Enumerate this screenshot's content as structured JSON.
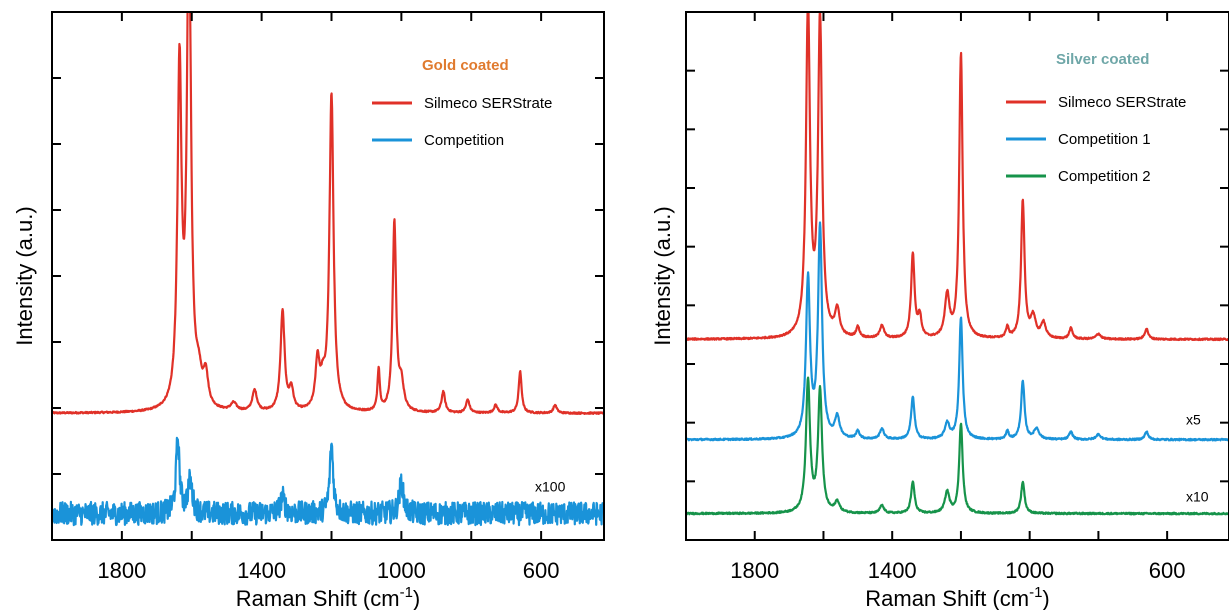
{
  "chart_data": [
    {
      "type": "line",
      "panel": "left",
      "legend_title": "Gold coated",
      "legend_title_color": "#e07a2e",
      "legend_position": "top-right",
      "xlabel": "Raman Shift (cm",
      "xlabel_sup": "-1",
      "xlabel_close": ")",
      "ylabel": "Intensity (a.u.)",
      "xlim": [
        2000,
        420
      ],
      "x_reversed": true,
      "x_ticks": [
        1800,
        1400,
        1000,
        600
      ],
      "x_tick_labels": [
        "1800",
        "1400",
        "1000",
        "600"
      ],
      "ylim": [
        0,
        100
      ],
      "series": [
        {
          "name": "Silmeco SERStrate",
          "color": "#e03128",
          "baseline": 24,
          "scale_label": "",
          "peaks": [
            {
              "x": 1635,
              "h": 64,
              "w": 7
            },
            {
              "x": 1608,
              "h": 92,
              "w": 7
            },
            {
              "x": 1580,
              "h": 5,
              "w": 10
            },
            {
              "x": 1560,
              "h": 6,
              "w": 8
            },
            {
              "x": 1480,
              "h": 1.5,
              "w": 10
            },
            {
              "x": 1420,
              "h": 4,
              "w": 8
            },
            {
              "x": 1340,
              "h": 19,
              "w": 7
            },
            {
              "x": 1315,
              "h": 4,
              "w": 7
            },
            {
              "x": 1240,
              "h": 9,
              "w": 7
            },
            {
              "x": 1225,
              "h": 4,
              "w": 8
            },
            {
              "x": 1200,
              "h": 60,
              "w": 7
            },
            {
              "x": 1065,
              "h": 8,
              "w": 4
            },
            {
              "x": 1020,
              "h": 36,
              "w": 6
            },
            {
              "x": 1000,
              "h": 5,
              "w": 8
            },
            {
              "x": 880,
              "h": 4,
              "w": 6
            },
            {
              "x": 810,
              "h": 2.5,
              "w": 6
            },
            {
              "x": 730,
              "h": 1.5,
              "w": 6
            },
            {
              "x": 660,
              "h": 8,
              "w": 5
            },
            {
              "x": 560,
              "h": 1.5,
              "w": 6
            }
          ]
        },
        {
          "name": "Competition",
          "color": "#1a93d9",
          "baseline": 5,
          "scale_label": "x100",
          "noise": 2.2,
          "peaks": [
            {
              "x": 1640,
              "h": 14,
              "w": 6
            },
            {
              "x": 1605,
              "h": 6,
              "w": 8
            },
            {
              "x": 1340,
              "h": 3,
              "w": 8
            },
            {
              "x": 1200,
              "h": 13,
              "w": 6
            },
            {
              "x": 1000,
              "h": 6,
              "w": 7
            }
          ]
        }
      ]
    },
    {
      "type": "line",
      "panel": "right",
      "legend_title": "Silver coated",
      "legend_title_color": "#6fa7a8",
      "legend_position": "top-right",
      "xlabel": "Raman Shift (cm",
      "xlabel_sup": "-1",
      "xlabel_close": ")",
      "ylabel": "Intensity (a.u.)",
      "xlim": [
        2000,
        420
      ],
      "x_reversed": true,
      "x_ticks": [
        1800,
        1400,
        1000,
        600
      ],
      "x_tick_labels": [
        "1800",
        "1400",
        "1000",
        "600"
      ],
      "ylim": [
        0,
        100
      ],
      "series": [
        {
          "name": "Silmeco SERStrate",
          "color": "#e03128",
          "baseline": 38,
          "scale_label": "",
          "peaks": [
            {
              "x": 1645,
              "h": 62,
              "w": 7
            },
            {
              "x": 1610,
              "h": 60,
              "w": 7
            },
            {
              "x": 1560,
              "h": 5,
              "w": 8
            },
            {
              "x": 1500,
              "h": 2,
              "w": 6
            },
            {
              "x": 1430,
              "h": 2.5,
              "w": 7
            },
            {
              "x": 1340,
              "h": 16,
              "w": 6
            },
            {
              "x": 1320,
              "h": 4,
              "w": 6
            },
            {
              "x": 1240,
              "h": 8,
              "w": 8
            },
            {
              "x": 1200,
              "h": 54,
              "w": 6
            },
            {
              "x": 1065,
              "h": 2,
              "w": 5
            },
            {
              "x": 1020,
              "h": 26,
              "w": 6
            },
            {
              "x": 990,
              "h": 4,
              "w": 9
            },
            {
              "x": 960,
              "h": 3,
              "w": 8
            },
            {
              "x": 880,
              "h": 2,
              "w": 6
            },
            {
              "x": 800,
              "h": 1,
              "w": 8
            },
            {
              "x": 660,
              "h": 2,
              "w": 6
            }
          ]
        },
        {
          "name": "Competition 1",
          "color": "#1a93d9",
          "baseline": 19,
          "scale_label": "x5",
          "peaks": [
            {
              "x": 1645,
              "h": 30,
              "w": 7
            },
            {
              "x": 1610,
              "h": 40,
              "w": 7
            },
            {
              "x": 1560,
              "h": 4,
              "w": 8
            },
            {
              "x": 1500,
              "h": 1.5,
              "w": 6
            },
            {
              "x": 1430,
              "h": 2,
              "w": 7
            },
            {
              "x": 1340,
              "h": 8,
              "w": 6
            },
            {
              "x": 1240,
              "h": 3,
              "w": 8
            },
            {
              "x": 1200,
              "h": 23,
              "w": 6
            },
            {
              "x": 1065,
              "h": 1.5,
              "w": 5
            },
            {
              "x": 1020,
              "h": 11,
              "w": 6
            },
            {
              "x": 980,
              "h": 2,
              "w": 9
            },
            {
              "x": 880,
              "h": 1.5,
              "w": 6
            },
            {
              "x": 800,
              "h": 1,
              "w": 8
            },
            {
              "x": 660,
              "h": 1.5,
              "w": 6
            }
          ]
        },
        {
          "name": "Competition 2",
          "color": "#16934a",
          "baseline": 5,
          "scale_label": "x10",
          "peaks": [
            {
              "x": 1645,
              "h": 25,
              "w": 7
            },
            {
              "x": 1610,
              "h": 23,
              "w": 7
            },
            {
              "x": 1560,
              "h": 2,
              "w": 8
            },
            {
              "x": 1430,
              "h": 1.5,
              "w": 7
            },
            {
              "x": 1340,
              "h": 6,
              "w": 6
            },
            {
              "x": 1240,
              "h": 4,
              "w": 8
            },
            {
              "x": 1200,
              "h": 17,
              "w": 6
            },
            {
              "x": 1020,
              "h": 6,
              "w": 6
            }
          ]
        }
      ]
    }
  ]
}
